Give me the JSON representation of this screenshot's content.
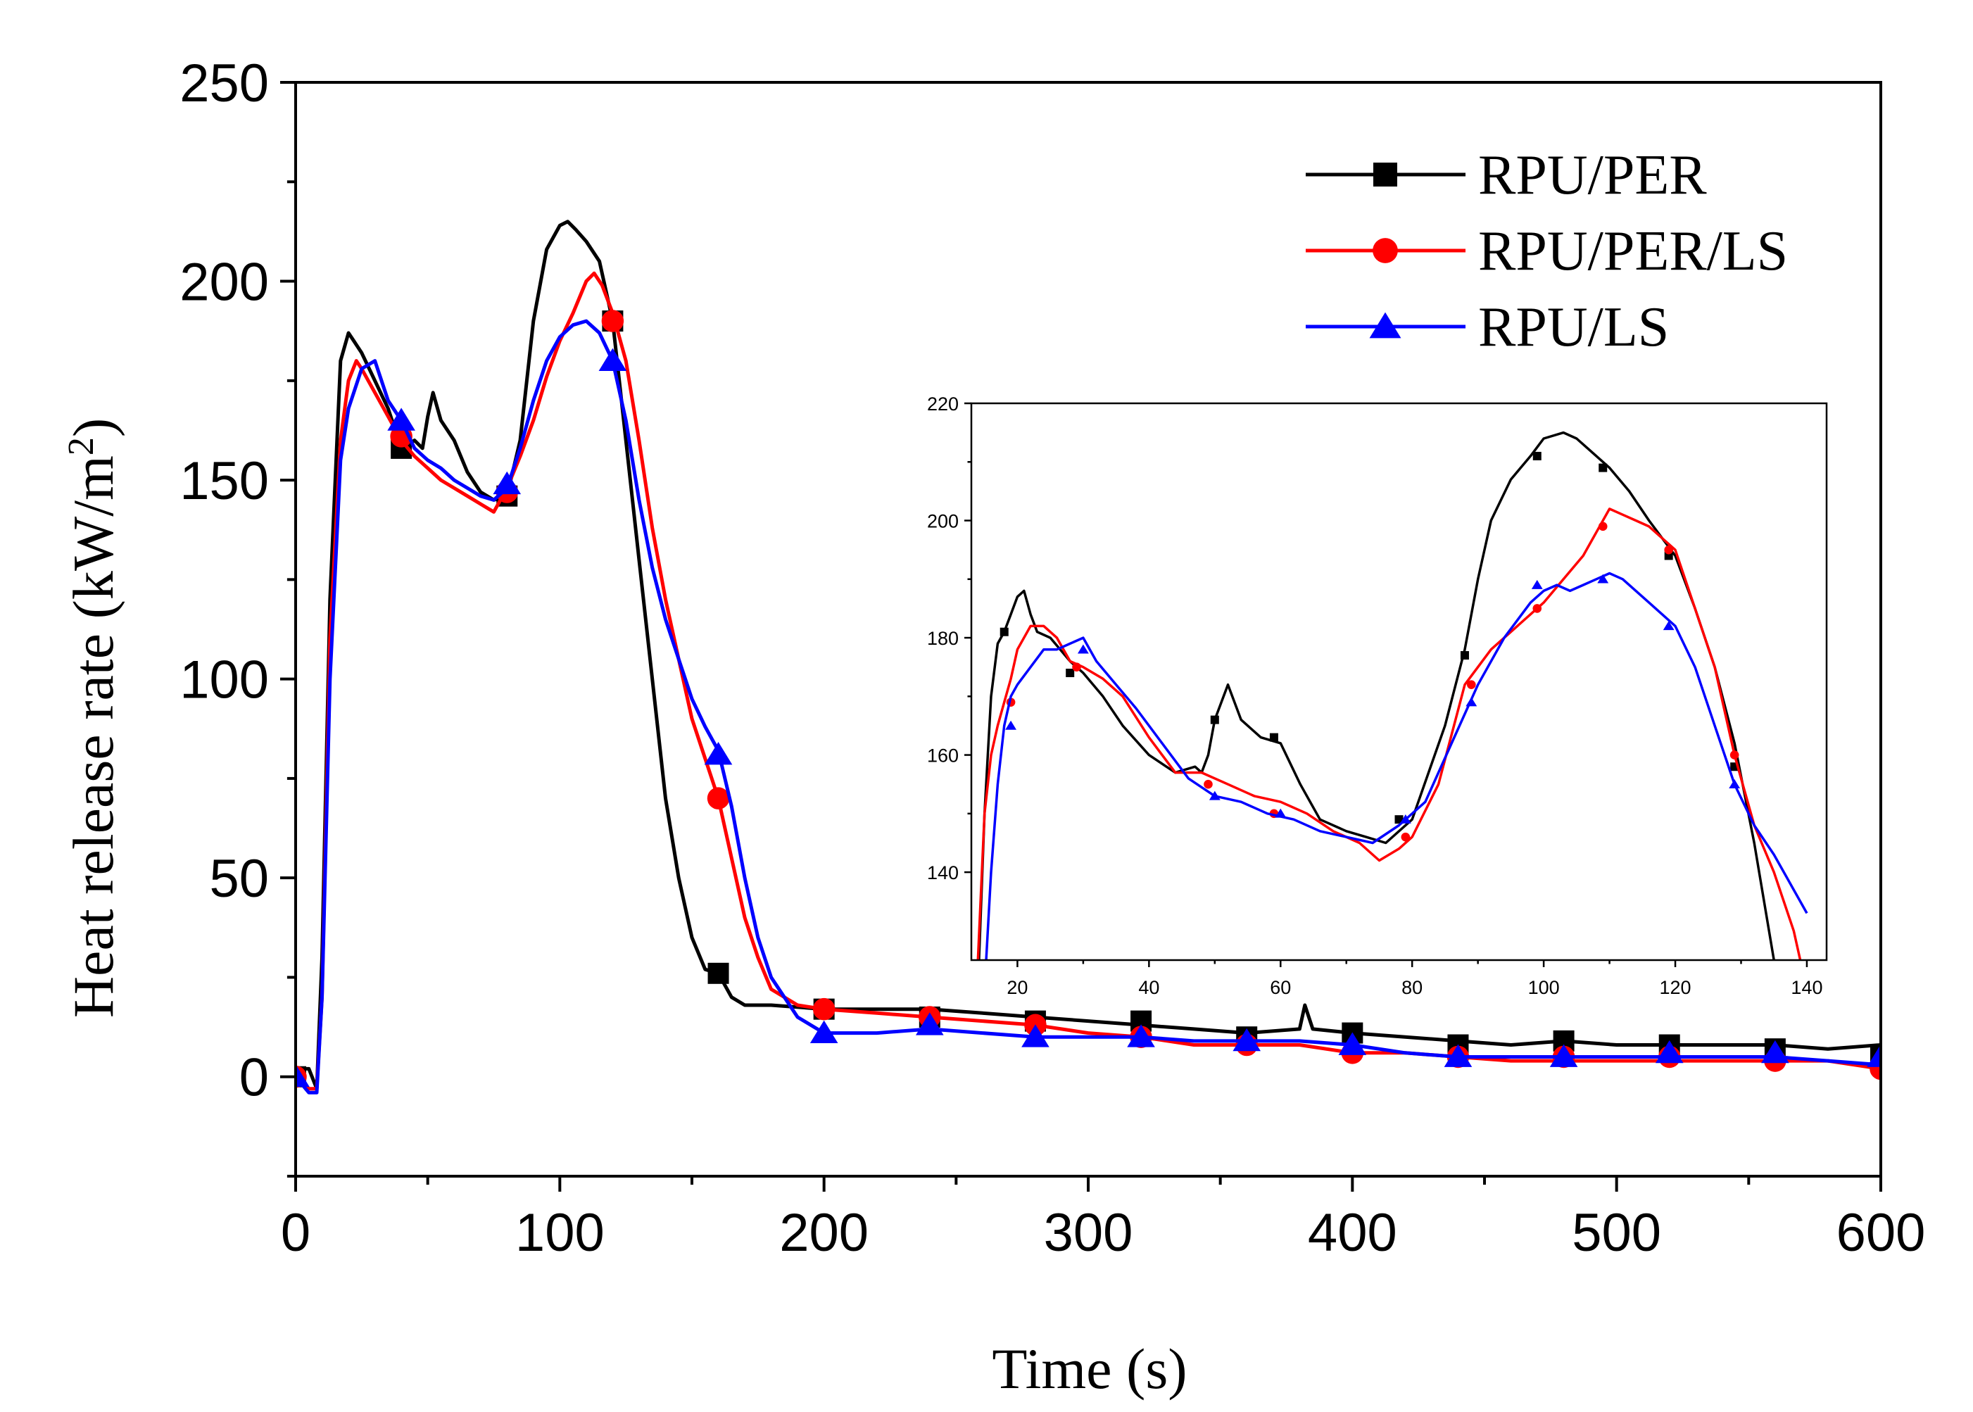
{
  "chart_data": [
    {
      "type": "line",
      "name": "main",
      "xlabel": "Time (s)",
      "ylabel": "Heat release rate (kW/m",
      "ylabel_sup": "2",
      "ylabel_close": ")",
      "xlim": [
        0,
        600
      ],
      "ylim": [
        -25,
        250
      ],
      "xticks": [
        0,
        100,
        200,
        300,
        400,
        500,
        600
      ],
      "yticks": [
        0,
        50,
        100,
        150,
        200,
        250
      ],
      "legend_position": "top-right",
      "series": [
        {
          "name": "RPU/PER",
          "color": "#000000",
          "marker": "square",
          "x": [
            0,
            5,
            8,
            10,
            13,
            17,
            20,
            22,
            25,
            30,
            35,
            40,
            45,
            48,
            50,
            52,
            55,
            58,
            60,
            65,
            70,
            75,
            80,
            85,
            90,
            95,
            100,
            103,
            106,
            110,
            115,
            120,
            125,
            130,
            135,
            140,
            145,
            150,
            155,
            160,
            165,
            170,
            180,
            200,
            220,
            240,
            260,
            280,
            300,
            320,
            340,
            360,
            380,
            382,
            385,
            400,
            420,
            440,
            460,
            480,
            500,
            520,
            540,
            560,
            580,
            600
          ],
          "y": [
            2,
            2,
            -3,
            30,
            120,
            180,
            187,
            185,
            182,
            175,
            168,
            158,
            160,
            158,
            166,
            172,
            165,
            162,
            160,
            152,
            147,
            145,
            146,
            160,
            190,
            208,
            214,
            215,
            213,
            210,
            205,
            190,
            160,
            130,
            100,
            70,
            50,
            35,
            27,
            26,
            20,
            18,
            18,
            17,
            17,
            17,
            16,
            15,
            14,
            13,
            12,
            11,
            12,
            18,
            12,
            11,
            10,
            9,
            8,
            9,
            8,
            8,
            8,
            8,
            7,
            8
          ],
          "marker_x": [
            0,
            40,
            80,
            120,
            160,
            200,
            240,
            280,
            320,
            360,
            400,
            440,
            480,
            520,
            560,
            600
          ],
          "marker_y": [
            0,
            158,
            146,
            190,
            26,
            17,
            15,
            14,
            14,
            10,
            11,
            8,
            9,
            8,
            7,
            5
          ]
        },
        {
          "name": "RPU/PER/LS",
          "color": "#ff0000",
          "marker": "circle",
          "x": [
            0,
            5,
            8,
            10,
            13,
            17,
            20,
            23,
            25,
            30,
            35,
            40,
            45,
            50,
            55,
            60,
            65,
            70,
            75,
            80,
            85,
            90,
            95,
            100,
            105,
            110,
            113,
            116,
            120,
            125,
            130,
            135,
            140,
            145,
            150,
            155,
            160,
            165,
            170,
            175,
            180,
            190,
            200,
            220,
            240,
            260,
            280,
            300,
            320,
            340,
            360,
            380,
            400,
            420,
            440,
            460,
            480,
            500,
            520,
            540,
            560,
            580,
            600
          ],
          "y": [
            0,
            -3,
            -3,
            20,
            110,
            160,
            175,
            180,
            178,
            172,
            166,
            160,
            156,
            153,
            150,
            148,
            146,
            144,
            142,
            148,
            156,
            165,
            176,
            185,
            192,
            200,
            202,
            199,
            192,
            180,
            160,
            138,
            120,
            105,
            90,
            80,
            70,
            55,
            40,
            30,
            22,
            18,
            17,
            16,
            15,
            14,
            13,
            11,
            10,
            8,
            8,
            8,
            6,
            6,
            5,
            4,
            4,
            4,
            4,
            4,
            4,
            4,
            2
          ],
          "marker_x": [
            0,
            40,
            80,
            120,
            160,
            200,
            240,
            280,
            320,
            360,
            400,
            440,
            480,
            520,
            560,
            600
          ],
          "marker_y": [
            0,
            161,
            147,
            190,
            70,
            17,
            15,
            13,
            10,
            8,
            6,
            5,
            5,
            5,
            4,
            2
          ]
        },
        {
          "name": "RPU/LS",
          "color": "#0000ff",
          "marker": "triangle",
          "x": [
            0,
            5,
            8,
            10,
            13,
            17,
            20,
            25,
            30,
            35,
            40,
            45,
            50,
            55,
            60,
            65,
            70,
            75,
            80,
            85,
            90,
            95,
            100,
            105,
            110,
            115,
            120,
            125,
            130,
            135,
            140,
            145,
            150,
            155,
            160,
            165,
            170,
            175,
            180,
            190,
            200,
            220,
            240,
            260,
            280,
            300,
            320,
            340,
            360,
            380,
            400,
            420,
            440,
            460,
            480,
            500,
            520,
            540,
            560,
            580,
            600
          ],
          "y": [
            0,
            -4,
            -4,
            20,
            100,
            155,
            168,
            178,
            180,
            170,
            165,
            158,
            155,
            153,
            150,
            148,
            146,
            145,
            148,
            158,
            170,
            180,
            186,
            189,
            190,
            187,
            180,
            165,
            145,
            128,
            115,
            105,
            95,
            88,
            82,
            68,
            50,
            35,
            25,
            15,
            11,
            11,
            12,
            11,
            10,
            10,
            10,
            9,
            9,
            9,
            8,
            6,
            5,
            5,
            5,
            5,
            5,
            5,
            5,
            4,
            3
          ],
          "marker_x": [
            0,
            40,
            80,
            120,
            160,
            200,
            240,
            280,
            320,
            360,
            400,
            440,
            480,
            520,
            560,
            600
          ],
          "marker_y": [
            0,
            165,
            149,
            180,
            81,
            11,
            13,
            10,
            10,
            9,
            8,
            5,
            5,
            6,
            6,
            5
          ]
        }
      ]
    },
    {
      "type": "line",
      "name": "inset",
      "xlim": [
        13,
        143
      ],
      "ylim": [
        125,
        220
      ],
      "xticks": [
        20,
        40,
        60,
        80,
        100,
        120,
        140
      ],
      "yticks": [
        140,
        160,
        180,
        200,
        220
      ],
      "series": [
        {
          "name": "RPU/PER",
          "color": "#000000",
          "marker": "square",
          "x": [
            14,
            15,
            16,
            17,
            18,
            19,
            20,
            21,
            22,
            23,
            25,
            28,
            30,
            33,
            36,
            40,
            44,
            47,
            48,
            49,
            50,
            52,
            54,
            57,
            60,
            63,
            66,
            70,
            73,
            76,
            80,
            85,
            88,
            90,
            92,
            95,
            98,
            100,
            103,
            105,
            108,
            110,
            113,
            116,
            120,
            123,
            126,
            129,
            132,
            135
          ],
          "y": [
            120,
            150,
            170,
            179,
            181,
            184,
            187,
            188,
            184,
            181,
            180,
            176,
            174,
            170,
            165,
            160,
            157,
            158,
            157,
            160,
            166,
            172,
            166,
            163,
            162,
            155,
            149,
            147,
            146,
            145,
            149,
            165,
            178,
            190,
            200,
            207,
            211,
            214,
            215,
            214,
            211,
            209,
            205,
            200,
            194,
            185,
            175,
            162,
            145,
            125
          ],
          "marker_x": [
            18,
            28,
            50,
            59,
            78,
            88,
            99,
            109,
            119,
            129
          ],
          "marker_y": [
            181,
            174,
            166,
            163,
            149,
            177,
            211,
            209,
            194,
            158
          ]
        },
        {
          "name": "RPU/PER/LS",
          "color": "#ff0000",
          "marker": "circle",
          "x": [
            14,
            15,
            16,
            17,
            18,
            19,
            20,
            22,
            24,
            26,
            28,
            30,
            33,
            36,
            40,
            44,
            48,
            52,
            56,
            60,
            64,
            68,
            72,
            75,
            78,
            80,
            84,
            88,
            92,
            96,
            100,
            103,
            106,
            108,
            110,
            112,
            114,
            116,
            118,
            120,
            123,
            126,
            129,
            132,
            135,
            138,
            139
          ],
          "y": [
            125,
            150,
            160,
            165,
            169,
            173,
            178,
            182,
            182,
            180,
            176,
            175,
            173,
            170,
            163,
            157,
            157,
            155,
            153,
            152,
            150,
            147,
            145,
            142,
            144,
            146,
            155,
            172,
            178,
            182,
            186,
            190,
            194,
            198,
            202,
            201,
            200,
            199,
            197,
            195,
            185,
            175,
            160,
            148,
            140,
            130,
            125
          ],
          "marker_x": [
            19,
            29,
            49,
            59,
            79,
            89,
            99,
            109,
            119,
            129
          ],
          "marker_y": [
            169,
            175,
            155,
            150,
            146,
            172,
            185,
            199,
            195,
            160
          ]
        },
        {
          "name": "RPU/LS",
          "color": "#0000ff",
          "marker": "triangle",
          "x": [
            15,
            16,
            17,
            18,
            19,
            20,
            22,
            24,
            26,
            28,
            30,
            32,
            35,
            38,
            42,
            46,
            50,
            54,
            58,
            62,
            66,
            70,
            74,
            78,
            82,
            86,
            90,
            94,
            98,
            100,
            102,
            104,
            106,
            108,
            110,
            112,
            114,
            116,
            118,
            120,
            123,
            126,
            129,
            132,
            135,
            138,
            140
          ],
          "y": [
            120,
            140,
            155,
            165,
            170,
            172,
            175,
            178,
            178,
            179,
            180,
            176,
            172,
            168,
            162,
            156,
            153,
            152,
            150,
            149,
            147,
            146,
            145,
            148,
            152,
            162,
            172,
            180,
            186,
            188,
            189,
            188,
            189,
            190,
            191,
            190,
            188,
            186,
            184,
            182,
            175,
            165,
            155,
            148,
            143,
            137,
            133
          ],
          "marker_x": [
            19,
            30,
            50,
            60,
            79,
            89,
            99,
            109,
            119,
            129
          ],
          "marker_y": [
            165,
            178,
            153,
            150,
            149,
            169,
            189,
            190,
            182,
            155
          ]
        }
      ]
    }
  ]
}
